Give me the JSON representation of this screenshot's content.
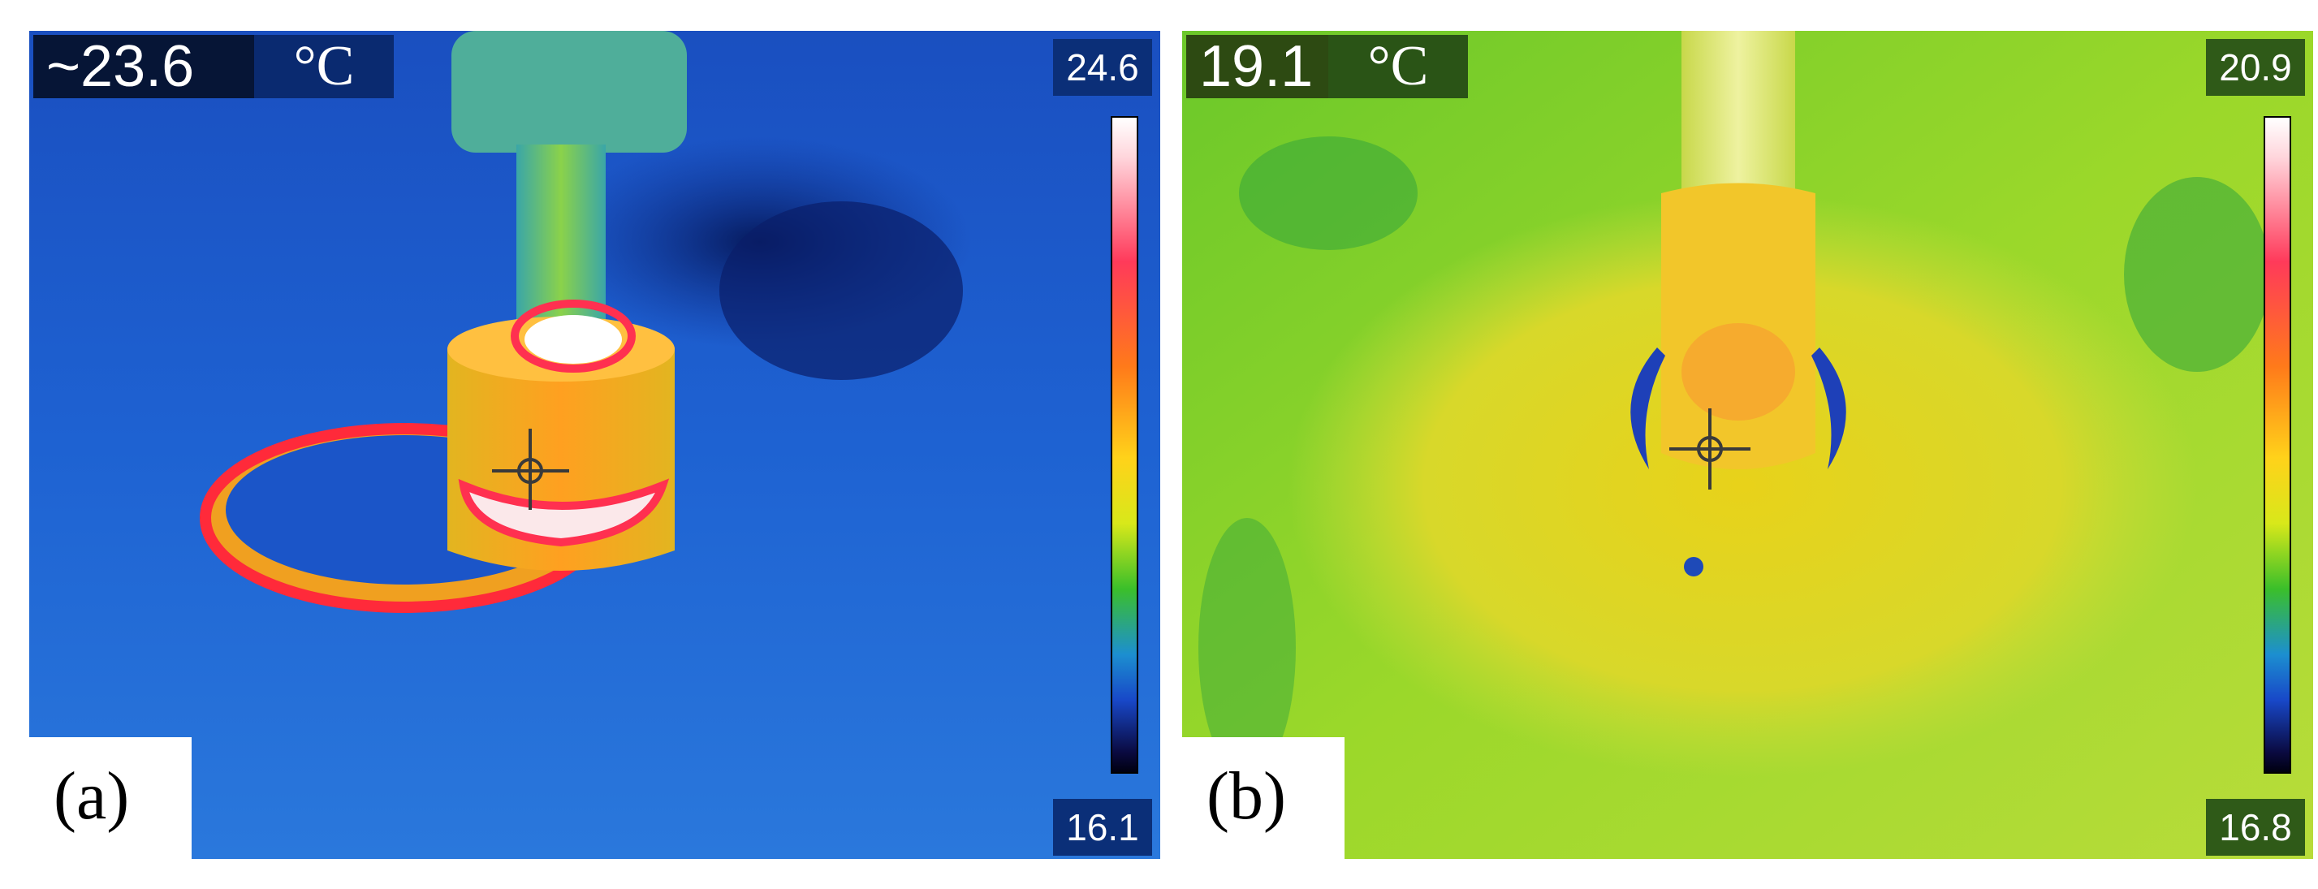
{
  "panels": [
    {
      "label": "(a)",
      "readout_value": "~23.6",
      "readout_unit": "°C",
      "scale_max": "24.6",
      "scale_min": "16.1",
      "palette": "iron-rainbow"
    },
    {
      "label": "(b)",
      "readout_value": "19.1",
      "readout_unit": "°C",
      "scale_max": "20.9",
      "scale_min": "16.8",
      "palette": "iron-rainbow"
    }
  ]
}
